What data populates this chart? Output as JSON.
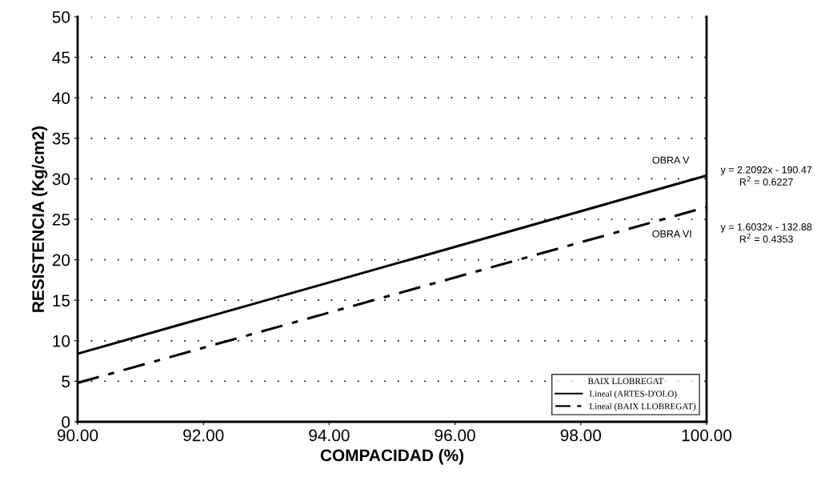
{
  "chart_data": {
    "type": "line",
    "xlabel": "COMPACIDAD (%)",
    "ylabel": "RESISTENCIA (Kg/cm2)",
    "legend_title": "BAIX LLOBREGAT",
    "x": [
      90,
      100
    ],
    "series": [
      {
        "name": "Lineal (ARTES-D'OLO)",
        "color": "#000000",
        "values": [
          8.4,
          30.4
        ],
        "line_style": "solid"
      },
      {
        "name": "Lineal (BAIX LLOBREGAT)",
        "color": "#000000",
        "values": [
          4.8,
          26.5
        ],
        "line_style": "dashed"
      }
    ],
    "xlim": [
      90,
      100
    ],
    "ylim": [
      0,
      50
    ],
    "xticks": [
      {
        "value": 90,
        "label": "90.00"
      },
      {
        "value": 92,
        "label": "92.00"
      },
      {
        "value": 94,
        "label": "94.00"
      },
      {
        "value": 96,
        "label": "96.00"
      },
      {
        "value": 98,
        "label": "98.00"
      },
      {
        "value": 100,
        "label": "100.00"
      }
    ],
    "yticks": [
      0,
      5,
      10,
      15,
      20,
      25,
      30,
      35,
      40,
      45,
      50
    ],
    "grid": "y",
    "legend": "bottom right",
    "marker": "none",
    "annotations": [
      "OBRA V",
      "OBRA VI",
      "y = 2.2092x - 190.47\nR$^{2}$ = 0.6227",
      "y = 1.6032x - 132.88\nR$^{2}$ = 0.4353"
    ]
  }
}
